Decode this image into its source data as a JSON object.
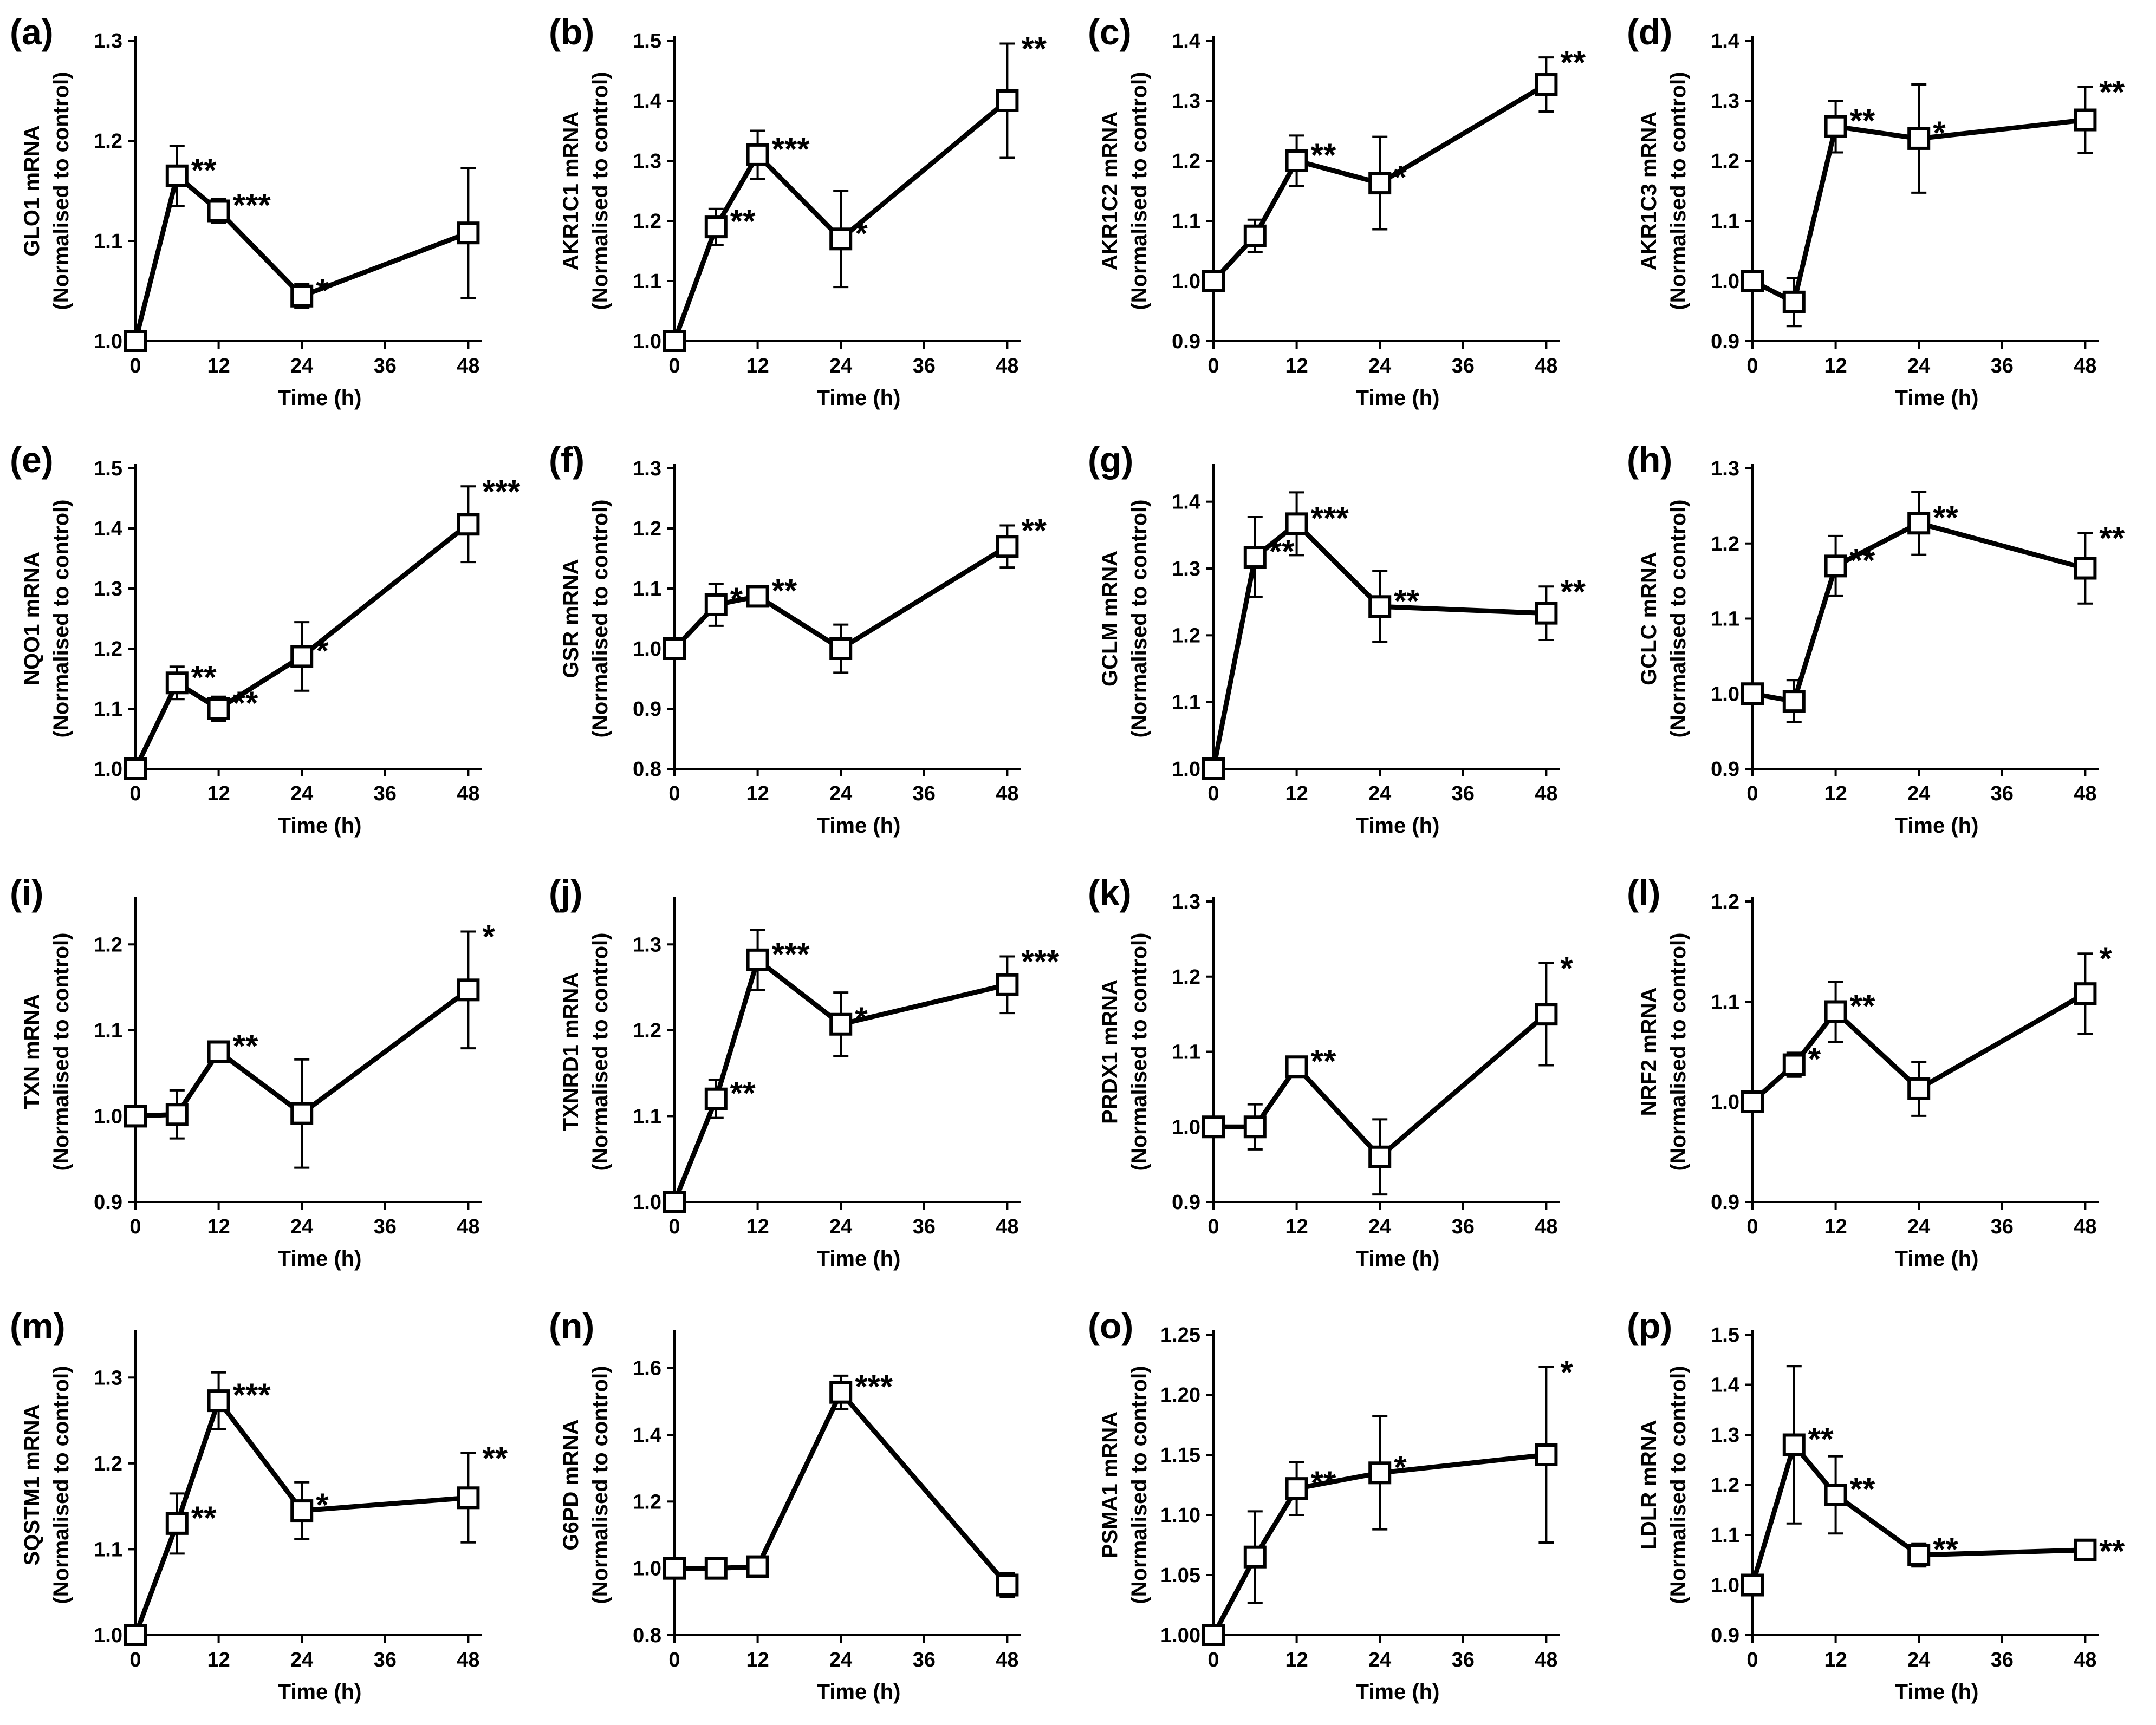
{
  "figure_title": "mRNA expression time courses",
  "chart_data": [
    {
      "id": "a",
      "type": "line",
      "panel_label": "(a)",
      "ylabel": "GLO1 mRNA",
      "ylabel2": "(Normalised to control)",
      "xlabel": "Time (h)",
      "x": [
        0,
        6,
        12,
        24,
        48
      ],
      "values": [
        1.0,
        1.165,
        1.13,
        1.045,
        1.108
      ],
      "errors": [
        0,
        0.03,
        0.012,
        0.012,
        0.065
      ],
      "ylim": [
        1.0,
        1.3
      ],
      "yticks": [
        "1.0",
        "1.1",
        "1.2",
        "1.3"
      ],
      "xticks": [
        0,
        12,
        24,
        36,
        48
      ],
      "stars": [
        "",
        "**",
        "***",
        "*",
        ""
      ]
    },
    {
      "id": "b",
      "type": "line",
      "panel_label": "(b)",
      "ylabel": "AKR1C1 mRNA",
      "ylabel2": "(Normalised to control)",
      "xlabel": "Time (h)",
      "x": [
        0,
        6,
        12,
        24,
        48
      ],
      "values": [
        1.0,
        1.19,
        1.31,
        1.17,
        1.4
      ],
      "errors": [
        0,
        0.03,
        0.04,
        0.08,
        0.095
      ],
      "ylim": [
        1.0,
        1.5
      ],
      "yticks": [
        "1.0",
        "1.1",
        "1.2",
        "1.3",
        "1.4",
        "1.5"
      ],
      "xticks": [
        0,
        12,
        24,
        36,
        48
      ],
      "stars": [
        "",
        "**",
        "***",
        "*",
        "**"
      ]
    },
    {
      "id": "c",
      "type": "line",
      "panel_label": "(c)",
      "ylabel": "AKR1C2 mRNA",
      "ylabel2": "(Normalised to control)",
      "xlabel": "Time (h)",
      "x": [
        0,
        6,
        12,
        24,
        48
      ],
      "values": [
        1.0,
        1.075,
        1.2,
        1.163,
        1.327
      ],
      "errors": [
        0,
        0.027,
        0.042,
        0.077,
        0.045
      ],
      "ylim": [
        0.9,
        1.4
      ],
      "yticks": [
        "0.9",
        "1.0",
        "1.1",
        "1.2",
        "1.3",
        "1.4"
      ],
      "xticks": [
        0,
        12,
        24,
        36,
        48
      ],
      "stars": [
        "",
        "",
        "**",
        "*",
        "**"
      ]
    },
    {
      "id": "d",
      "type": "line",
      "panel_label": "(d)",
      "ylabel": "AKR1C3 mRNA",
      "ylabel2": "(Normalised to control)",
      "xlabel": "Time (h)",
      "x": [
        0,
        6,
        12,
        24,
        48
      ],
      "values": [
        1.0,
        0.965,
        1.257,
        1.237,
        1.268
      ],
      "errors": [
        0,
        0.04,
        0.043,
        0.09,
        0.055
      ],
      "ylim": [
        0.9,
        1.4
      ],
      "yticks": [
        "0.9",
        "1.0",
        "1.1",
        "1.2",
        "1.3",
        "1.4"
      ],
      "xticks": [
        0,
        12,
        24,
        36,
        48
      ],
      "stars": [
        "",
        "",
        "**",
        "*",
        "**"
      ]
    },
    {
      "id": "e",
      "type": "line",
      "panel_label": "(e)",
      "ylabel": "NQO1 mRNA",
      "ylabel2": "(Normalised to control)",
      "xlabel": "Time (h)",
      "x": [
        0,
        6,
        12,
        24,
        48
      ],
      "values": [
        1.0,
        1.143,
        1.1,
        1.187,
        1.407
      ],
      "errors": [
        0,
        0.027,
        0.02,
        0.057,
        0.063
      ],
      "ylim": [
        1.0,
        1.5
      ],
      "yticks": [
        "1.0",
        "1.1",
        "1.2",
        "1.3",
        "1.4",
        "1.5"
      ],
      "xticks": [
        0,
        12,
        24,
        36,
        48
      ],
      "stars": [
        "",
        "**",
        "**",
        "*",
        "***"
      ]
    },
    {
      "id": "f",
      "type": "line",
      "panel_label": "(f)",
      "ylabel": "GSR mRNA",
      "ylabel2": "(Normalised to control)",
      "xlabel": "Time (h)",
      "x": [
        0,
        6,
        12,
        24,
        48
      ],
      "values": [
        1.0,
        1.073,
        1.087,
        1.0,
        1.17
      ],
      "errors": [
        0,
        0.035,
        0.015,
        0.04,
        0.035
      ],
      "ylim": [
        0.8,
        1.3
      ],
      "yticks": [
        "0.8",
        "0.9",
        "1.0",
        "1.1",
        "1.2",
        "1.3"
      ],
      "xticks": [
        0,
        12,
        24,
        36,
        48
      ],
      "stars": [
        "",
        "*",
        "**",
        "",
        "**"
      ]
    },
    {
      "id": "g",
      "type": "line",
      "panel_label": "(g)",
      "ylabel": "GCLM mRNA",
      "ylabel2": "(Normalised to control)",
      "xlabel": "Time (h)",
      "x": [
        0,
        6,
        12,
        24,
        48
      ],
      "values": [
        1.0,
        1.317,
        1.367,
        1.243,
        1.233
      ],
      "errors": [
        0,
        0.06,
        0.047,
        0.053,
        0.04
      ],
      "ylim": [
        1.0,
        1.45
      ],
      "yticks": [
        "1.0",
        "1.1",
        "1.2",
        "1.3",
        "1.4"
      ],
      "xticks": [
        0,
        12,
        24,
        36,
        48
      ],
      "stars": [
        "",
        "**",
        "***",
        "**",
        "**"
      ]
    },
    {
      "id": "h",
      "type": "line",
      "panel_label": "(h)",
      "ylabel": "GCLC mRNA",
      "ylabel2": "(Normalised to control)",
      "xlabel": "Time (h)",
      "x": [
        0,
        6,
        12,
        24,
        48
      ],
      "values": [
        1.0,
        0.99,
        1.17,
        1.227,
        1.167
      ],
      "errors": [
        0,
        0.028,
        0.04,
        0.042,
        0.047
      ],
      "ylim": [
        0.9,
        1.3
      ],
      "yticks": [
        "0.9",
        "1.0",
        "1.1",
        "1.2",
        "1.3"
      ],
      "xticks": [
        0,
        12,
        24,
        36,
        48
      ],
      "stars": [
        "",
        "",
        "**",
        "**",
        "**"
      ]
    },
    {
      "id": "i",
      "type": "line",
      "panel_label": "(i)",
      "ylabel": "TXN mRNA",
      "ylabel2": "(Normalised to control)",
      "xlabel": "Time (h)",
      "x": [
        0,
        6,
        12,
        24,
        48
      ],
      "values": [
        1.0,
        1.002,
        1.075,
        1.003,
        1.147
      ],
      "errors": [
        0,
        0.028,
        0.012,
        0.063,
        0.068
      ],
      "ylim": [
        0.9,
        1.25
      ],
      "yticks": [
        "0.9",
        "1.0",
        "1.1",
        "1.2"
      ],
      "xticks": [
        0,
        12,
        24,
        36,
        48
      ],
      "stars": [
        "",
        "",
        "**",
        "",
        "*"
      ]
    },
    {
      "id": "j",
      "type": "line",
      "panel_label": "(j)",
      "ylabel": "TXNRD1 mRNA",
      "ylabel2": "(Normalised to control)",
      "xlabel": "Time (h)",
      "x": [
        0,
        6,
        12,
        24,
        48
      ],
      "values": [
        1.0,
        1.12,
        1.282,
        1.207,
        1.253
      ],
      "errors": [
        0,
        0.022,
        0.035,
        0.037,
        0.033
      ],
      "ylim": [
        1.0,
        1.35
      ],
      "yticks": [
        "1.0",
        "1.1",
        "1.2",
        "1.3"
      ],
      "xticks": [
        0,
        12,
        24,
        36,
        48
      ],
      "stars": [
        "",
        "**",
        "***",
        "*",
        "***"
      ]
    },
    {
      "id": "k",
      "type": "line",
      "panel_label": "(k)",
      "ylabel": "PRDX1  mRNA",
      "ylabel2": "(Normalised to control)",
      "xlabel": "Time (h)",
      "x": [
        0,
        6,
        12,
        24,
        48
      ],
      "values": [
        1.0,
        1.0,
        1.08,
        0.96,
        1.15
      ],
      "errors": [
        0,
        0.03,
        0.012,
        0.05,
        0.068
      ],
      "ylim": [
        0.9,
        1.3
      ],
      "yticks": [
        "0.9",
        "1.0",
        "1.1",
        "1.2",
        "1.3"
      ],
      "xticks": [
        0,
        12,
        24,
        36,
        48
      ],
      "stars": [
        "",
        "",
        "**",
        "",
        "*"
      ]
    },
    {
      "id": "l",
      "type": "line",
      "panel_label": "(l)",
      "ylabel": "NRF2 mRNA",
      "ylabel2": "(Normalised to control)",
      "xlabel": "Time (h)",
      "x": [
        0,
        6,
        12,
        24,
        48
      ],
      "values": [
        1.0,
        1.037,
        1.09,
        1.013,
        1.108
      ],
      "errors": [
        0,
        0.012,
        0.03,
        0.027,
        0.04
      ],
      "ylim": [
        0.9,
        1.2
      ],
      "yticks": [
        "0.9",
        "1.0",
        "1.1",
        "1.2"
      ],
      "xticks": [
        0,
        12,
        24,
        36,
        48
      ],
      "stars": [
        "",
        "*",
        "**",
        "",
        "*"
      ]
    },
    {
      "id": "m",
      "type": "line",
      "panel_label": "(m)",
      "ylabel": "SQSTM1 mRNA",
      "ylabel2": "(Normalised to control)",
      "xlabel": "Time (h)",
      "x": [
        0,
        6,
        12,
        24,
        48
      ],
      "values": [
        1.0,
        1.13,
        1.273,
        1.145,
        1.16
      ],
      "errors": [
        0,
        0.035,
        0.033,
        0.033,
        0.052
      ],
      "ylim": [
        1.0,
        1.35
      ],
      "yticks": [
        "1.0",
        "1.1",
        "1.2",
        "1.3"
      ],
      "xticks": [
        0,
        12,
        24,
        36,
        48
      ],
      "stars": [
        "",
        "**",
        "***",
        "*",
        "**"
      ]
    },
    {
      "id": "n",
      "type": "line",
      "panel_label": "(n)",
      "ylabel": "G6PD mRNA",
      "ylabel2": "(Normalised to control)",
      "xlabel": "Time (h)",
      "x": [
        0,
        6,
        12,
        24,
        48
      ],
      "values": [
        1.0,
        1.0,
        1.005,
        1.527,
        0.95
      ],
      "errors": [
        0,
        0.02,
        0.02,
        0.05,
        0.035
      ],
      "ylim": [
        0.8,
        1.7
      ],
      "yticks": [
        "0.8",
        "1.0",
        "1.2",
        "1.4",
        "1.6"
      ],
      "xticks": [
        0,
        12,
        24,
        36,
        48
      ],
      "stars": [
        "",
        "",
        "",
        "***",
        ""
      ]
    },
    {
      "id": "o",
      "type": "line",
      "panel_label": "(o)",
      "ylabel": "PSMA1 mRNA",
      "ylabel2": "(Normalised to control)",
      "xlabel": "Time (h)",
      "x": [
        0,
        6,
        12,
        24,
        48
      ],
      "values": [
        1.0,
        1.065,
        1.122,
        1.135,
        1.15
      ],
      "errors": [
        0,
        0.038,
        0.022,
        0.047,
        0.073
      ],
      "ylim": [
        1.0,
        1.25
      ],
      "yticks": [
        "1.00",
        "1.05",
        "1.10",
        "1.15",
        "1.20",
        "1.25"
      ],
      "xticks": [
        0,
        12,
        24,
        36,
        48
      ],
      "stars": [
        "",
        "",
        "**",
        "*",
        "*"
      ]
    },
    {
      "id": "p",
      "type": "line",
      "panel_label": "(p)",
      "ylabel": "LDLR mRNA",
      "ylabel2": "(Normalised to control)",
      "xlabel": "Time (h)",
      "x": [
        0,
        6,
        12,
        24,
        48
      ],
      "values": [
        1.0,
        1.28,
        1.18,
        1.06,
        1.07
      ],
      "errors": [
        0,
        0.157,
        0.077,
        0.023,
        0.008
      ],
      "ylim": [
        0.9,
        1.5
      ],
      "yticks": [
        "0.9",
        "1.0",
        "1.1",
        "1.2",
        "1.3",
        "1.4",
        "1.5"
      ],
      "xticks": [
        0,
        12,
        24,
        36,
        48
      ],
      "stars": [
        "",
        "**",
        "**",
        "**",
        "**"
      ]
    }
  ]
}
